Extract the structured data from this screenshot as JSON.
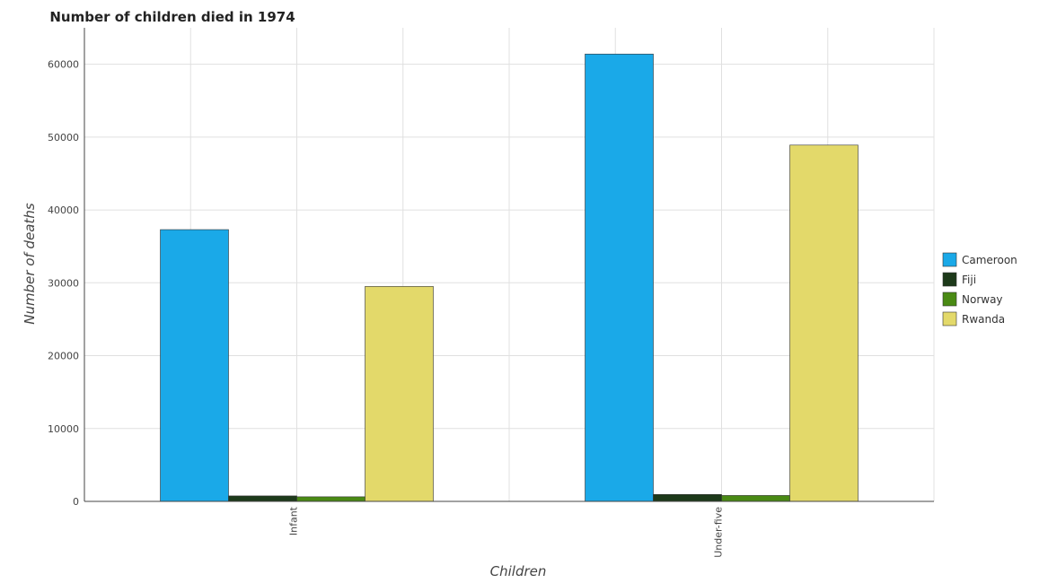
{
  "chart_data": {
    "type": "bar",
    "title": "Number of children died in 1974",
    "xlabel": "Children",
    "ylabel": "Number of deaths",
    "categories": [
      "Infant",
      "Under-five"
    ],
    "ylim": [
      0,
      65000
    ],
    "yticks": [
      0,
      10000,
      20000,
      30000,
      40000,
      50000,
      60000
    ],
    "ytick_labels": [
      "0",
      "10000",
      "20000",
      "30000",
      "40000",
      "50000",
      "60000"
    ],
    "grid": true,
    "legend_position": "right",
    "series": [
      {
        "name": "Cameroon",
        "color": "#1aa9e8",
        "values": [
          37300,
          61400
        ]
      },
      {
        "name": "Fiji",
        "color": "#1d3a1a",
        "values": [
          750,
          950
        ]
      },
      {
        "name": "Norway",
        "color": "#4a8a14",
        "values": [
          630,
          810
        ]
      },
      {
        "name": "Rwanda",
        "color": "#e3d96a",
        "values": [
          29500,
          48900
        ]
      }
    ]
  }
}
